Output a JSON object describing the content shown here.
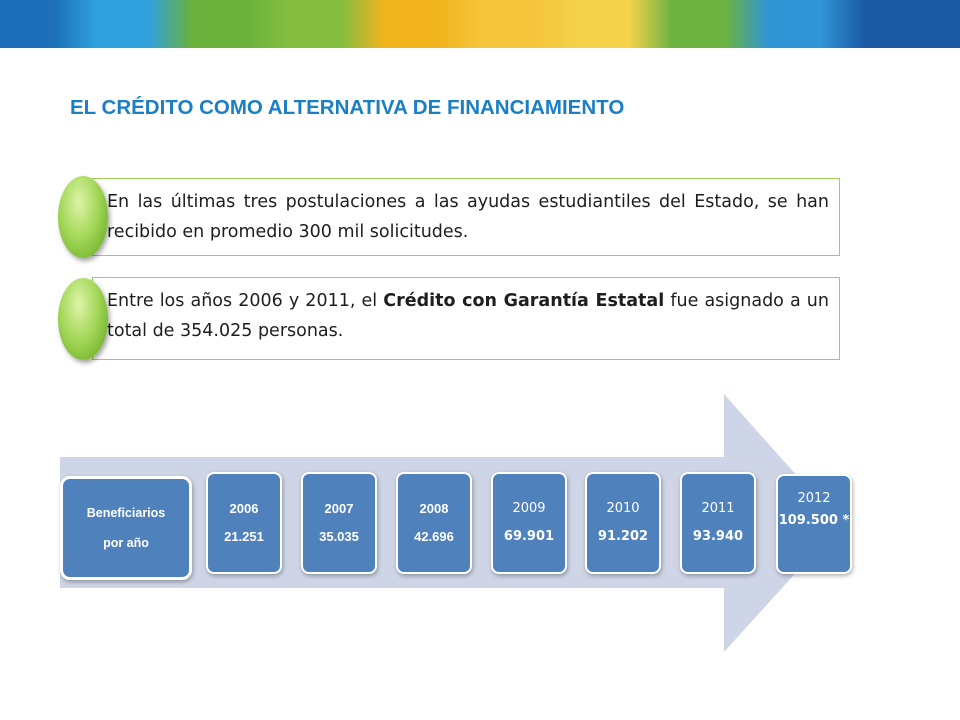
{
  "header": {
    "stripe_colors": [
      "#1c6fb8",
      "#2fa0dc",
      "#6ab23c",
      "#84bd40",
      "#f0b31c",
      "#f5c43a",
      "#f4d24a",
      "#6db342",
      "#2f95d4",
      "#1c5aa6"
    ]
  },
  "title": "EL CRÉDITO COMO ALTERNATIVA DE FINANCIAMIENTO",
  "info_boxes": [
    {
      "text": "En las últimas tres postulaciones a las ayudas estudiantiles del Estado, se han recibido en promedio 300 mil solicitudes."
    },
    {
      "text_before": "Entre los años 2006 y 2011, el ",
      "bold": "Crédito con Garantía Estatal",
      "text_after": " fue asignado a un total de 354.025 personas."
    }
  ],
  "timeline": {
    "label_line1": "Beneficiarios",
    "label_line2": "por año",
    "cards": [
      {
        "year": "2006",
        "value": "21.251"
      },
      {
        "year": "2007",
        "value": "35.035"
      },
      {
        "year": "2008",
        "value": "42.696"
      },
      {
        "year": "2009",
        "value": "69.901"
      },
      {
        "year": "2010",
        "value": "91.202"
      },
      {
        "year": "2011",
        "value": "93.940"
      },
      {
        "year": "2012",
        "value": "109.500 *"
      }
    ],
    "colors": {
      "arrow": "#ced5e6",
      "card": "#4f81bd",
      "card_text": "#ffffff"
    }
  },
  "colors": {
    "title": "#1b7fc4",
    "box_border": "#9bcf5a",
    "bullet": "#8cc63f"
  }
}
